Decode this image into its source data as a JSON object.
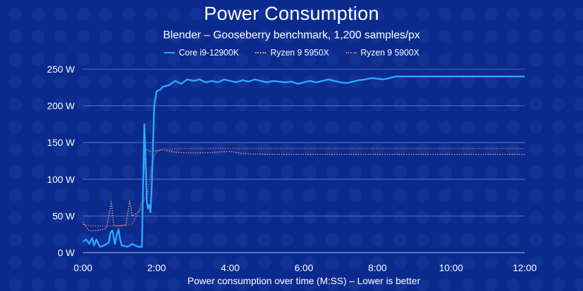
{
  "chart_data": {
    "type": "line",
    "title": "Power Consumption",
    "subtitle": "Blender – Gooseberry benchmark, 1,200 samples/px",
    "xlabel": "Power consumption over time (M:SS) – Lower is better",
    "ylabel": "",
    "x_ticks": [
      "0:00",
      "2:00",
      "4:00",
      "6:00",
      "8:00",
      "10:00",
      "12:00"
    ],
    "y_ticks": [
      "0 W",
      "50 W",
      "100 W",
      "150 W",
      "200 W",
      "250 W"
    ],
    "xlim_seconds": [
      0,
      720
    ],
    "ylim": [
      0,
      250
    ],
    "grid": "horizontal",
    "legend_position": "top-center",
    "series": [
      {
        "name": "Core i9-12900K",
        "color": "#29a9ff",
        "style": "solid",
        "points": [
          [
            0,
            15
          ],
          [
            5,
            18
          ],
          [
            10,
            12
          ],
          [
            15,
            20
          ],
          [
            18,
            10
          ],
          [
            22,
            18
          ],
          [
            25,
            12
          ],
          [
            28,
            8
          ],
          [
            35,
            10
          ],
          [
            42,
            14
          ],
          [
            45,
            28
          ],
          [
            48,
            30
          ],
          [
            52,
            12
          ],
          [
            55,
            24
          ],
          [
            58,
            32
          ],
          [
            60,
            20
          ],
          [
            63,
            10
          ],
          [
            68,
            9
          ],
          [
            72,
            8
          ],
          [
            75,
            9
          ],
          [
            80,
            12
          ],
          [
            85,
            10
          ],
          [
            90,
            8
          ],
          [
            96,
            8
          ],
          [
            100,
            175
          ],
          [
            102,
            130
          ],
          [
            104,
            70
          ],
          [
            106,
            60
          ],
          [
            108,
            65
          ],
          [
            110,
            55
          ],
          [
            112,
            90
          ],
          [
            116,
            200
          ],
          [
            120,
            220
          ],
          [
            126,
            222
          ],
          [
            130,
            226
          ],
          [
            140,
            228
          ],
          [
            150,
            234
          ],
          [
            160,
            230
          ],
          [
            170,
            236
          ],
          [
            180,
            234
          ],
          [
            190,
            236
          ],
          [
            200,
            232
          ],
          [
            210,
            234
          ],
          [
            220,
            232
          ],
          [
            230,
            236
          ],
          [
            240,
            234
          ],
          [
            250,
            232
          ],
          [
            260,
            235
          ],
          [
            270,
            233
          ],
          [
            280,
            236
          ],
          [
            290,
            234
          ],
          [
            300,
            232
          ],
          [
            310,
            234
          ],
          [
            320,
            233
          ],
          [
            330,
            232
          ],
          [
            340,
            233
          ],
          [
            350,
            230
          ],
          [
            360,
            232
          ],
          [
            370,
            234
          ],
          [
            380,
            232
          ],
          [
            390,
            234
          ],
          [
            400,
            236
          ],
          [
            410,
            234
          ],
          [
            420,
            232
          ],
          [
            430,
            231
          ],
          [
            440,
            233
          ],
          [
            450,
            235
          ],
          [
            460,
            236
          ],
          [
            470,
            238
          ],
          [
            480,
            237
          ],
          [
            490,
            236
          ],
          [
            500,
            238
          ],
          [
            510,
            240
          ],
          [
            520,
            240
          ],
          [
            530,
            240
          ],
          [
            540,
            240
          ],
          [
            560,
            240
          ],
          [
            600,
            240
          ],
          [
            650,
            240
          ],
          [
            680,
            240
          ],
          [
            700,
            240
          ],
          [
            720,
            240
          ]
        ]
      },
      {
        "name": "Ryzen 9 5950X",
        "color": "#e3a76f",
        "style": "dotted",
        "points": [
          [
            0,
            42
          ],
          [
            5,
            35
          ],
          [
            10,
            30
          ],
          [
            20,
            30
          ],
          [
            30,
            31
          ],
          [
            38,
            33
          ],
          [
            44,
            58
          ],
          [
            46,
            70
          ],
          [
            48,
            55
          ],
          [
            50,
            38
          ],
          [
            55,
            36
          ],
          [
            60,
            36
          ],
          [
            70,
            38
          ],
          [
            76,
            70
          ],
          [
            78,
            62
          ],
          [
            80,
            50
          ],
          [
            90,
            55
          ],
          [
            96,
            60
          ],
          [
            100,
            115
          ],
          [
            102,
            142
          ],
          [
            104,
            140
          ],
          [
            110,
            138
          ],
          [
            130,
            140
          ],
          [
            150,
            137
          ],
          [
            170,
            136
          ],
          [
            200,
            136
          ],
          [
            240,
            138
          ],
          [
            260,
            135
          ],
          [
            300,
            134
          ],
          [
            400,
            134
          ],
          [
            500,
            134
          ],
          [
            600,
            134
          ],
          [
            720,
            134
          ]
        ]
      },
      {
        "name": "Ryzen 9 5900X",
        "color": "#d46b6b",
        "style": "dotted",
        "points": [
          [
            0,
            38
          ],
          [
            10,
            37
          ],
          [
            30,
            36
          ],
          [
            60,
            37
          ],
          [
            80,
            38
          ],
          [
            90,
            55
          ],
          [
            96,
            70
          ],
          [
            100,
            72
          ],
          [
            106,
            80
          ],
          [
            110,
            110
          ],
          [
            114,
            125
          ],
          [
            118,
            135
          ],
          [
            122,
            138
          ],
          [
            130,
            142
          ],
          [
            140,
            141
          ],
          [
            160,
            142
          ],
          [
            200,
            142
          ],
          [
            300,
            142
          ],
          [
            400,
            142
          ],
          [
            500,
            142
          ],
          [
            600,
            142
          ],
          [
            720,
            142
          ]
        ]
      }
    ]
  }
}
